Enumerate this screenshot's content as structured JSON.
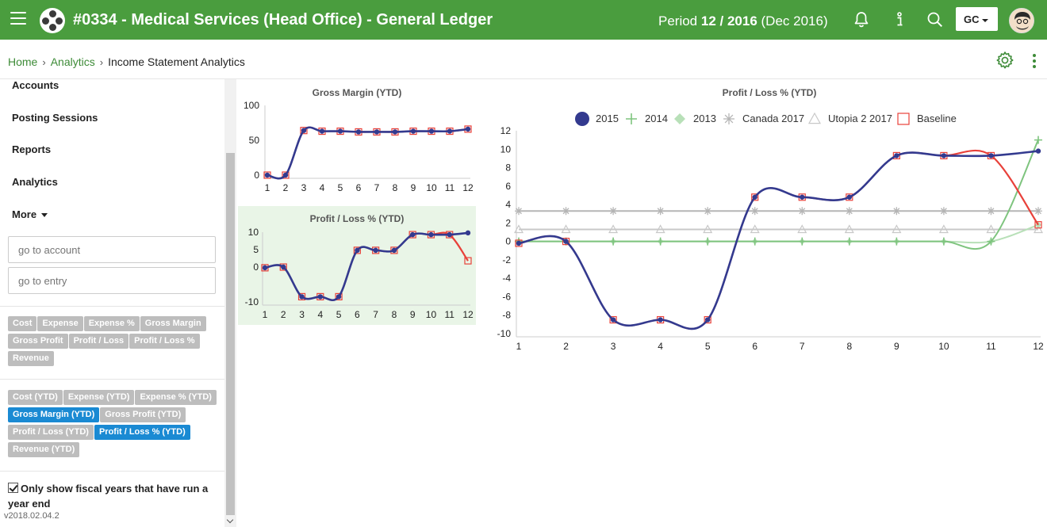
{
  "header": {
    "title": "#0334 - Medical Services (Head Office) - General Ledger",
    "period_prefix": "Period",
    "period_value": "12 / 2016",
    "period_suffix": "(Dec 2016)",
    "user_initials": "GC"
  },
  "breadcrumb": {
    "home": "Home",
    "analytics": "Analytics",
    "current": "Income Statement Analytics"
  },
  "sidebar": {
    "nav": [
      "Accounts",
      "Posting Sessions",
      "Reports",
      "Analytics",
      "More"
    ],
    "account_placeholder": "go to account",
    "entry_placeholder": "go to entry",
    "metric_tags": [
      "Cost",
      "Expense",
      "Expense %",
      "Gross Margin",
      "Gross Profit",
      "Profit / Loss",
      "Profit / Loss %",
      "Revenue"
    ],
    "ytd_tags": [
      {
        "label": "Cost (YTD)",
        "active": false
      },
      {
        "label": "Expense (YTD)",
        "active": false
      },
      {
        "label": "Expense % (YTD)",
        "active": false
      },
      {
        "label": "Gross Margin (YTD)",
        "active": true
      },
      {
        "label": "Gross Profit (YTD)",
        "active": false
      },
      {
        "label": "Profit / Loss (YTD)",
        "active": false
      },
      {
        "label": "Profit / Loss % (YTD)",
        "active": true
      },
      {
        "label": "Revenue (YTD)",
        "active": false
      }
    ],
    "fiscal_checkbox_label": "Only show fiscal years that have run a year end",
    "fiscal_checked": true,
    "version": "v2018.02.04.2"
  },
  "colors": {
    "brand": "#4a9d3e",
    "series_2015": "#333a8f",
    "series_2014": "#7ec47e",
    "series_2013": "#b8e0b8",
    "canada": "#b5b5b5",
    "utopia": "#c8c8c8",
    "baseline": "#e8413a",
    "tag_active": "#1a8ad3"
  },
  "chart_data": [
    {
      "id": "gross-margin",
      "type": "line",
      "title": "Gross Margin (YTD)",
      "categories": [
        "1",
        "2",
        "3",
        "4",
        "5",
        "6",
        "7",
        "8",
        "9",
        "10",
        "11",
        "12"
      ],
      "y_ticks": [
        "100",
        "50",
        "0"
      ],
      "ylim": [
        0,
        100
      ],
      "series": [
        {
          "name": "2015",
          "values": [
            0,
            0,
            64,
            63,
            63,
            62,
            62,
            62,
            63,
            63,
            63,
            66
          ]
        },
        {
          "name": "Baseline",
          "values": [
            0,
            0,
            64,
            63,
            63,
            62,
            62,
            62,
            63,
            63,
            63,
            66
          ]
        }
      ]
    },
    {
      "id": "profit-loss-small",
      "type": "line",
      "title": "Profit / Loss % (YTD)",
      "categories": [
        "1",
        "2",
        "3",
        "4",
        "5",
        "6",
        "7",
        "8",
        "9",
        "10",
        "11",
        "12"
      ],
      "y_ticks": [
        "10",
        "5",
        "0",
        "-10"
      ],
      "ylim": [
        -10,
        10
      ],
      "series": [
        {
          "name": "2015",
          "values": [
            -0.2,
            0,
            -8.5,
            -8.5,
            -8.5,
            4.8,
            4.8,
            4.8,
            9.3,
            9.3,
            9.3,
            9.8
          ]
        },
        {
          "name": "Baseline",
          "values": [
            -0.2,
            0,
            -8.5,
            -8.5,
            -8.5,
            4.8,
            4.8,
            4.8,
            9.3,
            9.3,
            9.3,
            1.8
          ]
        }
      ]
    },
    {
      "id": "profit-loss-big",
      "type": "line",
      "title": "Profit / Loss % (YTD)",
      "categories": [
        "1",
        "2",
        "3",
        "4",
        "5",
        "6",
        "7",
        "8",
        "9",
        "10",
        "11",
        "12"
      ],
      "y_ticks": [
        "12",
        "10",
        "8",
        "6",
        "4",
        "2",
        "0",
        "-2",
        "-4",
        "-6",
        "-8",
        "-10"
      ],
      "ylim": [
        -10,
        12
      ],
      "legend": [
        "2015",
        "2014",
        "2013",
        "Canada 2017",
        "Utopia 2 2017",
        "Baseline"
      ],
      "series": [
        {
          "name": "2015",
          "values": [
            -0.2,
            0,
            -8.5,
            -8.5,
            -8.5,
            4.8,
            4.8,
            4.8,
            9.3,
            9.3,
            9.3,
            9.8
          ]
        },
        {
          "name": "2014",
          "values": [
            0,
            0,
            0,
            0,
            0,
            0,
            0,
            0,
            0,
            0,
            0,
            11
          ]
        },
        {
          "name": "2013",
          "values": [
            0,
            0,
            0,
            0,
            0,
            0,
            0,
            0,
            0,
            0,
            0,
            1.8
          ]
        },
        {
          "name": "Canada 2017",
          "values": [
            3.3,
            3.3,
            3.3,
            3.3,
            3.3,
            3.3,
            3.3,
            3.3,
            3.3,
            3.3,
            3.3,
            3.3
          ]
        },
        {
          "name": "Utopia 2 2017",
          "values": [
            1.3,
            1.3,
            1.3,
            1.3,
            1.3,
            1.3,
            1.3,
            1.3,
            1.3,
            1.3,
            1.3,
            1.3
          ]
        },
        {
          "name": "Baseline",
          "values": [
            -0.2,
            0,
            -8.5,
            -8.5,
            -8.5,
            4.8,
            4.8,
            4.8,
            9.3,
            9.3,
            9.3,
            1.8
          ]
        }
      ]
    }
  ]
}
